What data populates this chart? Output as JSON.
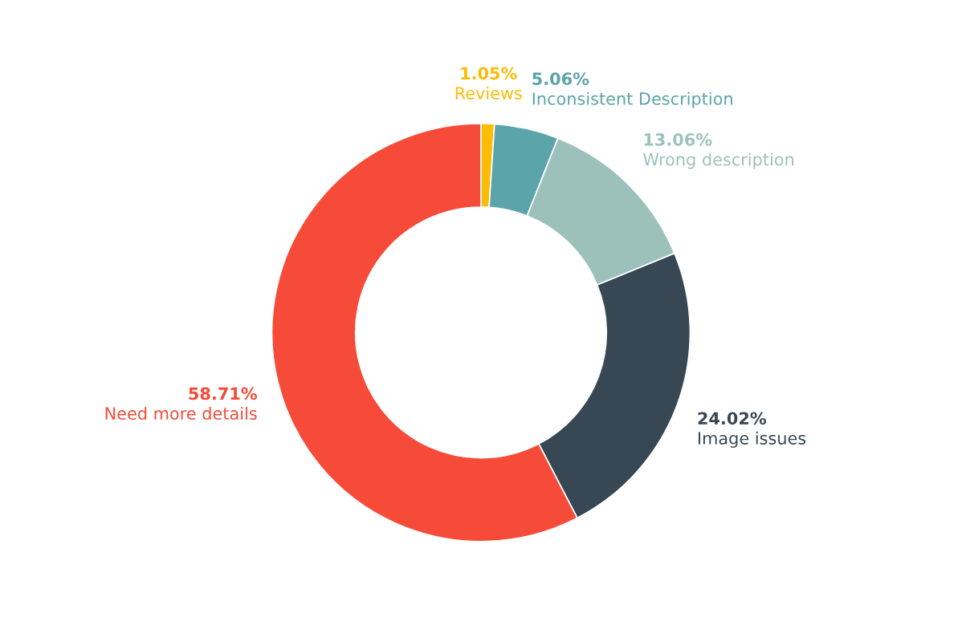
{
  "chart_data": {
    "type": "donut",
    "categories": [
      "Reviews",
      "Inconsistent Description",
      "Wrong description",
      "Image issues",
      "Need more details"
    ],
    "values": [
      1.05,
      5.06,
      13.06,
      24.02,
      58.71
    ],
    "colors": [
      "#fbbc05",
      "#5ba4aa",
      "#9cc1bb",
      "#374754",
      "#f54b38"
    ],
    "value_labels": [
      "1.05%",
      "5.06%",
      "13.06%",
      "24.02%",
      "58.71%"
    ],
    "legend": false
  }
}
